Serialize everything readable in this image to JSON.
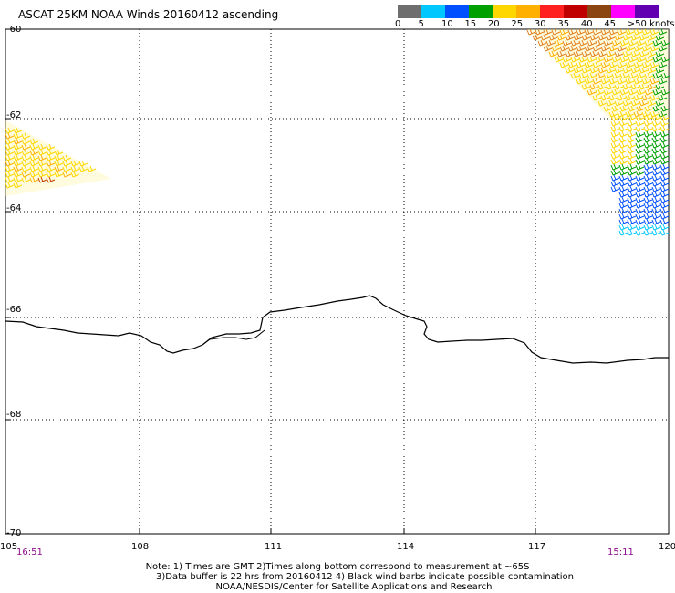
{
  "title": "ASCAT 25KM NOAA Winds 20160412 ascending",
  "colorbar": {
    "colors": [
      "#6e6e6e",
      "#00c8ff",
      "#0050ff",
      "#00a000",
      "#ffd700",
      "#ffb000",
      "#ff2020",
      "#c00000",
      "#8b4513",
      "#ff00ff",
      "#6000b0"
    ],
    "labels": [
      "0",
      "5",
      "10",
      "15",
      "20",
      "25",
      "30",
      "35",
      "40",
      "45",
      ">50 knots"
    ]
  },
  "lat_labels": [
    "-60",
    "-62",
    "-64",
    "-66",
    "-68",
    "-70"
  ],
  "lon_labels": [
    "105",
    "108",
    "111",
    "114",
    "117",
    "120"
  ],
  "times": {
    "left": "16:51",
    "right": "15:11"
  },
  "notes": [
    "Note: 1) Times are GMT 2)Times along bottom correspond to measurement at ~65S",
    "3)Data buffer is 22 hrs from 20160412 4) Black wind barbs indicate possible contamination",
    "NOAA/NESDIS/Center for Satellite Applications and Research"
  ]
}
